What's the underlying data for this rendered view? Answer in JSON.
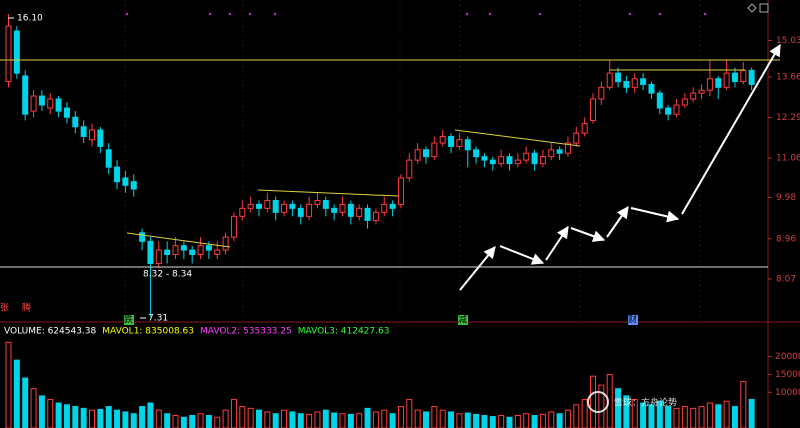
{
  "chart_data": [
    {
      "type": "candlestick",
      "log": true,
      "ylim": [
        7.25,
        16.7
      ],
      "yticks": [
        15.03,
        13.66,
        12.29,
        11.06,
        9.98,
        8.96,
        8.07
      ],
      "up_color": "#ff3c3c",
      "down_color": "#00d4e8",
      "open": [
        13.5,
        15.4,
        13.7,
        12.5,
        13.0,
        12.6,
        12.9,
        12.6,
        12.3,
        12.0,
        11.6,
        11.9,
        11.3,
        10.8,
        10.5,
        10.4,
        9.1,
        8.9,
        8.4,
        8.7,
        8.6,
        8.8,
        8.7,
        8.6,
        8.8,
        8.6,
        8.7,
        9.0,
        9.5,
        9.7,
        9.8,
        9.7,
        9.9,
        9.6,
        9.8,
        9.7,
        9.5,
        9.8,
        9.9,
        9.7,
        9.6,
        9.8,
        9.5,
        9.7,
        9.4,
        9.6,
        9.8,
        9.8,
        10.5,
        11.0,
        11.3,
        11.1,
        11.5,
        11.7,
        11.4,
        11.6,
        11.3,
        11.1,
        11.0,
        10.9,
        11.1,
        10.9,
        11.0,
        11.2,
        10.9,
        11.1,
        11.3,
        11.2,
        11.5,
        11.8,
        12.2,
        12.9,
        13.3,
        13.8,
        13.5,
        13.3,
        13.6,
        13.4,
        13.1,
        12.6,
        12.4,
        12.7,
        12.9,
        13.1,
        13.2,
        13.6,
        13.3,
        13.8,
        13.5,
        13.9
      ],
      "high": [
        16.1,
        15.6,
        13.9,
        13.2,
        13.2,
        13.1,
        13.0,
        12.8,
        12.5,
        12.2,
        12.1,
        12.0,
        11.5,
        11.0,
        10.7,
        10.6,
        9.2,
        9.0,
        8.9,
        8.9,
        9.0,
        8.9,
        8.8,
        9.0,
        8.9,
        8.9,
        9.1,
        9.6,
        9.9,
        10.0,
        9.9,
        10.1,
        10.0,
        9.9,
        9.9,
        9.8,
        10.0,
        10.1,
        10.0,
        9.8,
        10.0,
        9.9,
        9.8,
        9.8,
        9.7,
        10.0,
        9.9,
        10.6,
        11.2,
        11.5,
        11.4,
        11.7,
        11.9,
        11.8,
        11.8,
        11.7,
        11.4,
        11.2,
        11.1,
        11.3,
        11.2,
        11.2,
        11.4,
        11.3,
        11.3,
        11.5,
        11.4,
        11.7,
        12.0,
        12.3,
        13.1,
        13.5,
        14.3,
        14.0,
        13.7,
        13.8,
        13.8,
        13.5,
        13.2,
        12.7,
        12.9,
        13.1,
        13.3,
        13.4,
        14.3,
        13.7,
        14.3,
        14.0,
        14.2,
        14.0
      ],
      "low": [
        13.3,
        13.6,
        12.2,
        12.3,
        12.5,
        12.4,
        12.3,
        12.1,
        11.8,
        11.5,
        11.4,
        11.2,
        10.6,
        10.2,
        10.1,
        10.0,
        8.7,
        7.31,
        8.3,
        8.4,
        8.5,
        8.5,
        8.4,
        8.5,
        8.5,
        8.5,
        8.6,
        8.9,
        9.4,
        9.6,
        9.5,
        9.6,
        9.4,
        9.5,
        9.5,
        9.3,
        9.4,
        9.7,
        9.5,
        9.4,
        9.5,
        9.3,
        9.4,
        9.2,
        9.3,
        9.5,
        9.5,
        9.7,
        10.4,
        10.9,
        10.9,
        11.0,
        11.4,
        11.2,
        11.3,
        10.8,
        10.9,
        10.8,
        10.7,
        10.8,
        10.7,
        10.8,
        10.9,
        10.7,
        10.8,
        11.0,
        11.0,
        11.1,
        11.4,
        11.7,
        12.1,
        12.7,
        13.2,
        13.3,
        13.1,
        13.1,
        13.2,
        12.9,
        12.4,
        12.2,
        12.3,
        12.6,
        12.8,
        12.9,
        13.0,
        12.9,
        13.2,
        13.3,
        13.4,
        13.2
      ],
      "close": [
        15.6,
        13.8,
        12.4,
        13.0,
        12.7,
        12.9,
        12.5,
        12.3,
        12.0,
        11.7,
        11.9,
        11.4,
        10.8,
        10.4,
        10.3,
        10.2,
        8.9,
        8.4,
        8.7,
        8.6,
        8.8,
        8.7,
        8.6,
        8.8,
        8.7,
        8.7,
        9.0,
        9.5,
        9.7,
        9.8,
        9.7,
        9.9,
        9.6,
        9.8,
        9.7,
        9.5,
        9.8,
        9.9,
        9.7,
        9.6,
        9.8,
        9.5,
        9.7,
        9.4,
        9.6,
        9.8,
        9.7,
        10.5,
        11.0,
        11.3,
        11.1,
        11.5,
        11.7,
        11.4,
        11.6,
        11.3,
        11.1,
        11.0,
        10.9,
        11.1,
        10.9,
        11.0,
        11.2,
        10.9,
        11.1,
        11.3,
        11.2,
        11.5,
        11.8,
        12.1,
        12.9,
        13.3,
        13.8,
        13.5,
        13.3,
        13.6,
        13.4,
        13.1,
        12.6,
        12.4,
        12.7,
        12.9,
        13.1,
        13.2,
        13.6,
        13.3,
        13.8,
        13.5,
        13.9,
        13.4
      ],
      "annotations": [
        "16.10",
        "7.31",
        "8.32 - 8.34"
      ],
      "markers": [
        "张",
        "腾",
        "跌",
        "减",
        "财"
      ]
    },
    {
      "type": "bar",
      "ylim": [
        0,
        28000
      ],
      "yticks": [
        20000,
        15000,
        10000
      ],
      "indicators": [
        {
          "label": "VOLUME: 624543.38",
          "color": "#ffffff"
        },
        {
          "label": "MAVOL1: 835008.63",
          "color": "#ffff00"
        },
        {
          "label": "MAVOL2: 535333.25",
          "color": "#ff40ff"
        },
        {
          "label": "MAVOL3: 412427.63",
          "color": "#33ff33"
        }
      ],
      "values": [
        24000,
        19000,
        14000,
        11000,
        9000,
        8000,
        7000,
        6500,
        6000,
        5500,
        5000,
        5200,
        6000,
        5000,
        4500,
        4000,
        6000,
        7000,
        5000,
        4000,
        3500,
        3000,
        3500,
        4000,
        3500,
        3000,
        5000,
        8000,
        6000,
        5500,
        5000,
        4500,
        4000,
        5000,
        4500,
        4000,
        3800,
        4500,
        5000,
        4200,
        4000,
        3800,
        4000,
        5500,
        4500,
        5000,
        4000,
        6000,
        8000,
        5000,
        4500,
        6000,
        5000,
        4500,
        4000,
        4200,
        3800,
        3500,
        3200,
        3500,
        3000,
        3500,
        4000,
        3500,
        3800,
        4500,
        4000,
        5000,
        6500,
        8000,
        14500,
        12000,
        15000,
        11000,
        9000,
        8000,
        7000,
        6500,
        7500,
        6000,
        5500,
        6000,
        5500,
        6000,
        7000,
        6500,
        7500,
        6000,
        13000,
        8000
      ]
    },
    {
      "watermark": "雪球：方舟论势"
    }
  ]
}
